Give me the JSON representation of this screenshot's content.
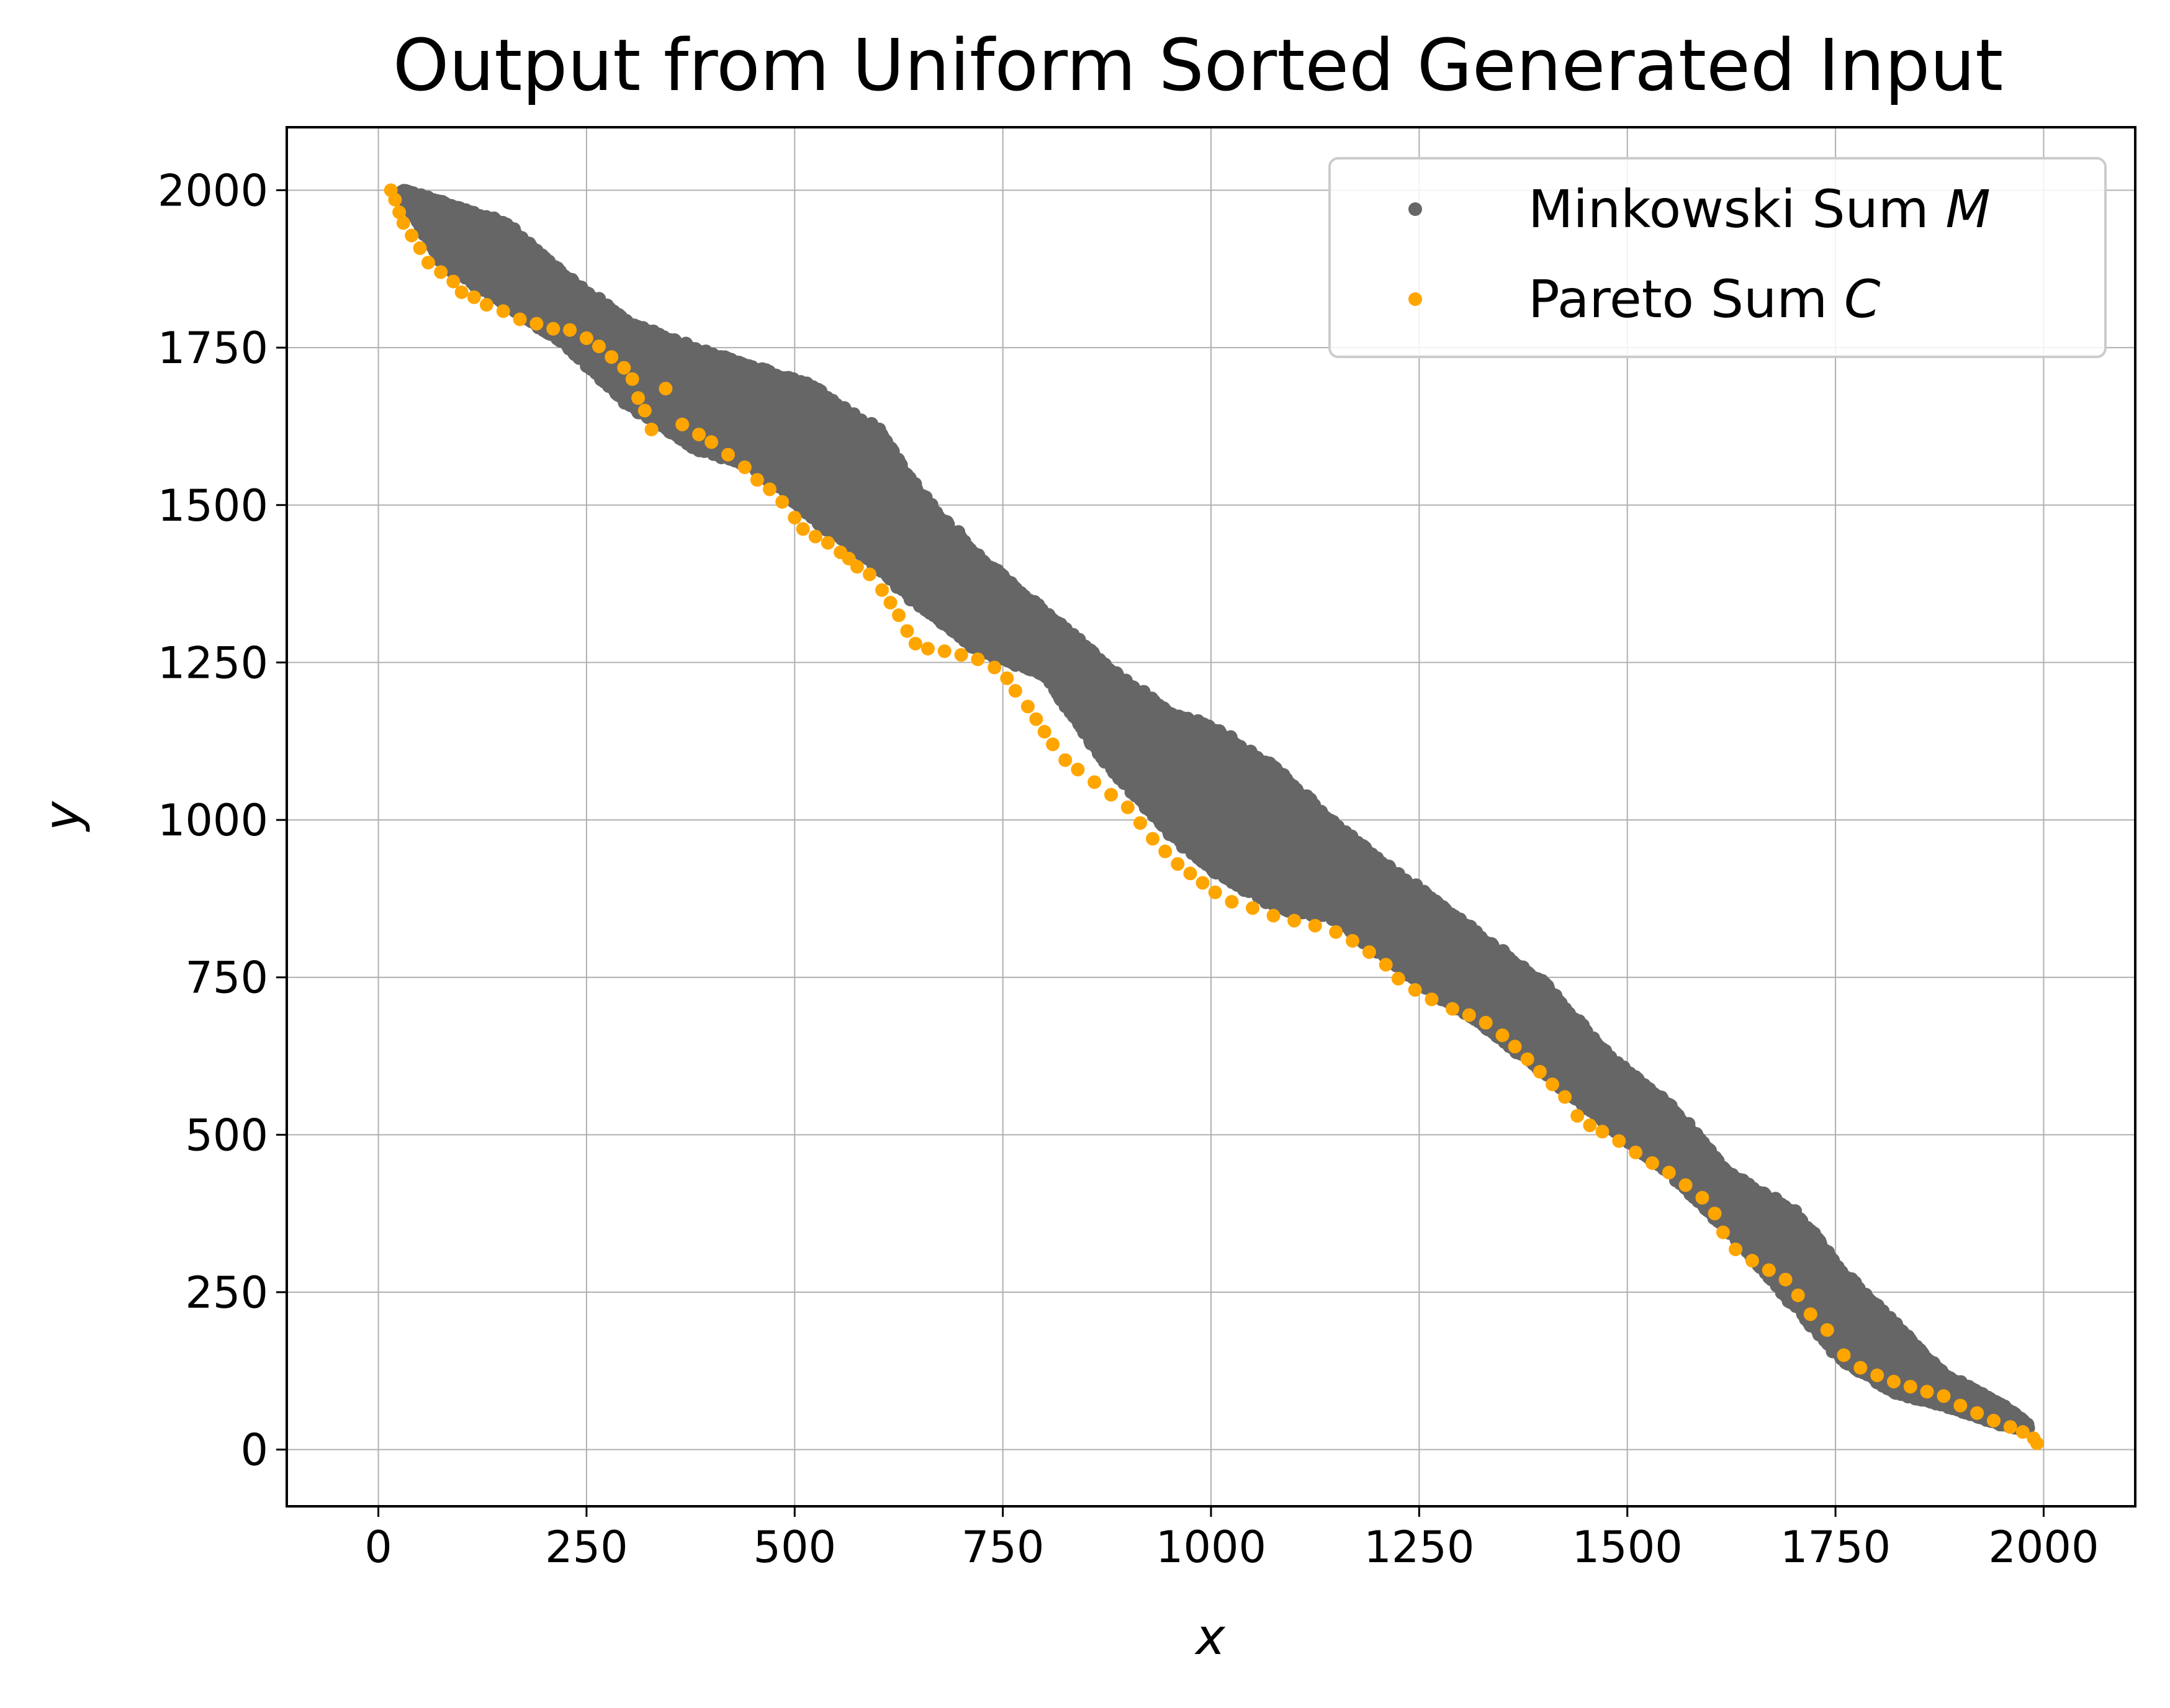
{
  "chart_data": {
    "type": "scatter",
    "title": "Output from Uniform Sorted Generated Input",
    "xlabel": "x",
    "ylabel": "y",
    "xlim": [
      -110,
      2110
    ],
    "ylim": [
      -90,
      2100
    ],
    "xticks": [
      0,
      250,
      500,
      750,
      1000,
      1250,
      1500,
      1750,
      2000
    ],
    "yticks": [
      0,
      250,
      500,
      750,
      1000,
      1250,
      1500,
      1750,
      2000
    ],
    "grid": true,
    "legend_position": "top-right",
    "series": [
      {
        "name": "Minkowski Sum",
        "name_symbol": "M",
        "color": "#666666",
        "band": [
          [
            30,
            2000,
            1990
          ],
          [
            80,
            1980,
            1880
          ],
          [
            150,
            1950,
            1820
          ],
          [
            220,
            1870,
            1760
          ],
          [
            300,
            1790,
            1660
          ],
          [
            380,
            1750,
            1590
          ],
          [
            450,
            1720,
            1560
          ],
          [
            520,
            1690,
            1480
          ],
          [
            600,
            1620,
            1400
          ],
          [
            650,
            1520,
            1340
          ],
          [
            720,
            1420,
            1270
          ],
          [
            800,
            1330,
            1230
          ],
          [
            880,
            1240,
            1080
          ],
          [
            950,
            1170,
            980
          ],
          [
            1000,
            1150,
            920
          ],
          [
            1080,
            1080,
            860
          ],
          [
            1150,
            990,
            840
          ],
          [
            1250,
            890,
            740
          ],
          [
            1320,
            820,
            680
          ],
          [
            1400,
            740,
            600
          ],
          [
            1480,
            620,
            510
          ],
          [
            1550,
            550,
            440
          ],
          [
            1620,
            440,
            350
          ],
          [
            1700,
            380,
            230
          ],
          [
            1760,
            280,
            140
          ],
          [
            1820,
            200,
            90
          ],
          [
            1880,
            120,
            70
          ],
          [
            1950,
            70,
            40
          ],
          [
            1980,
            40,
            30
          ]
        ]
      },
      {
        "name": "Pareto Sum",
        "name_symbol": "C",
        "color": "#FFA500",
        "points": [
          [
            15,
            2000
          ],
          [
            20,
            1985
          ],
          [
            25,
            1965
          ],
          [
            30,
            1948
          ],
          [
            40,
            1928
          ],
          [
            50,
            1908
          ],
          [
            60,
            1885
          ],
          [
            75,
            1870
          ],
          [
            90,
            1855
          ],
          [
            100,
            1838
          ],
          [
            115,
            1830
          ],
          [
            130,
            1818
          ],
          [
            150,
            1808
          ],
          [
            170,
            1795
          ],
          [
            190,
            1788
          ],
          [
            210,
            1780
          ],
          [
            230,
            1778
          ],
          [
            250,
            1765
          ],
          [
            265,
            1752
          ],
          [
            280,
            1735
          ],
          [
            295,
            1718
          ],
          [
            305,
            1700
          ],
          [
            312,
            1670
          ],
          [
            320,
            1650
          ],
          [
            328,
            1620
          ],
          [
            345,
            1685
          ],
          [
            365,
            1628
          ],
          [
            385,
            1612
          ],
          [
            400,
            1600
          ],
          [
            420,
            1580
          ],
          [
            440,
            1560
          ],
          [
            455,
            1540
          ],
          [
            470,
            1525
          ],
          [
            485,
            1505
          ],
          [
            500,
            1480
          ],
          [
            510,
            1462
          ],
          [
            525,
            1450
          ],
          [
            540,
            1440
          ],
          [
            555,
            1425
          ],
          [
            565,
            1415
          ],
          [
            575,
            1402
          ],
          [
            590,
            1390
          ],
          [
            605,
            1365
          ],
          [
            615,
            1345
          ],
          [
            625,
            1325
          ],
          [
            635,
            1300
          ],
          [
            645,
            1280
          ],
          [
            660,
            1272
          ],
          [
            680,
            1268
          ],
          [
            700,
            1262
          ],
          [
            720,
            1255
          ],
          [
            740,
            1242
          ],
          [
            755,
            1225
          ],
          [
            765,
            1205
          ],
          [
            780,
            1180
          ],
          [
            790,
            1160
          ],
          [
            800,
            1140
          ],
          [
            810,
            1120
          ],
          [
            825,
            1095
          ],
          [
            840,
            1080
          ],
          [
            860,
            1060
          ],
          [
            880,
            1040
          ],
          [
            900,
            1020
          ],
          [
            915,
            995
          ],
          [
            930,
            970
          ],
          [
            945,
            950
          ],
          [
            960,
            930
          ],
          [
            975,
            915
          ],
          [
            990,
            900
          ],
          [
            1005,
            885
          ],
          [
            1025,
            870
          ],
          [
            1050,
            860
          ],
          [
            1075,
            848
          ],
          [
            1100,
            840
          ],
          [
            1125,
            832
          ],
          [
            1150,
            822
          ],
          [
            1170,
            808
          ],
          [
            1190,
            790
          ],
          [
            1210,
            770
          ],
          [
            1225,
            748
          ],
          [
            1245,
            730
          ],
          [
            1265,
            715
          ],
          [
            1290,
            700
          ],
          [
            1310,
            690
          ],
          [
            1330,
            678
          ],
          [
            1350,
            658
          ],
          [
            1365,
            640
          ],
          [
            1380,
            620
          ],
          [
            1395,
            600
          ],
          [
            1410,
            580
          ],
          [
            1425,
            560
          ],
          [
            1440,
            530
          ],
          [
            1455,
            515
          ],
          [
            1470,
            505
          ],
          [
            1490,
            490
          ],
          [
            1510,
            472
          ],
          [
            1530,
            455
          ],
          [
            1550,
            440
          ],
          [
            1570,
            420
          ],
          [
            1590,
            400
          ],
          [
            1605,
            375
          ],
          [
            1615,
            345
          ],
          [
            1630,
            318
          ],
          [
            1650,
            300
          ],
          [
            1670,
            285
          ],
          [
            1690,
            270
          ],
          [
            1705,
            245
          ],
          [
            1720,
            215
          ],
          [
            1740,
            190
          ],
          [
            1760,
            150
          ],
          [
            1780,
            130
          ],
          [
            1800,
            118
          ],
          [
            1820,
            108
          ],
          [
            1840,
            100
          ],
          [
            1860,
            92
          ],
          [
            1880,
            85
          ],
          [
            1900,
            70
          ],
          [
            1920,
            58
          ],
          [
            1940,
            46
          ],
          [
            1960,
            36
          ],
          [
            1975,
            28
          ],
          [
            1988,
            18
          ],
          [
            1992,
            10
          ]
        ]
      }
    ]
  }
}
